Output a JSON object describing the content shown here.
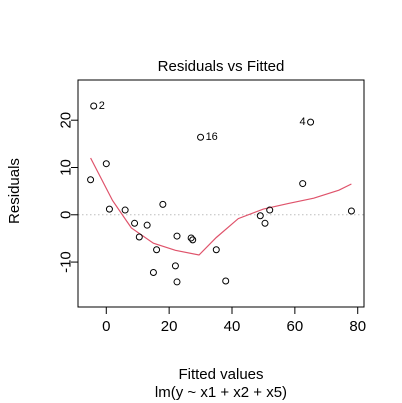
{
  "chart_data": {
    "type": "scatter",
    "title": "Residuals vs Fitted",
    "xlabel": "Fitted values",
    "subtitle": "lm(y ~ x1 + x2 + x5)",
    "ylabel": "Residuals",
    "xlim": [
      -9,
      82
    ],
    "ylim": [
      -19.5,
      28.5
    ],
    "xticks": [
      0,
      20,
      40,
      60,
      80
    ],
    "yticks": [
      -10,
      0,
      10,
      20
    ],
    "points": [
      {
        "x": -4,
        "y": 23.0,
        "label": "2"
      },
      {
        "x": -5,
        "y": 7.4
      },
      {
        "x": 0,
        "y": 10.8
      },
      {
        "x": 1,
        "y": 1.2
      },
      {
        "x": 6,
        "y": 1.0
      },
      {
        "x": 9,
        "y": -1.8
      },
      {
        "x": 10.5,
        "y": -4.7
      },
      {
        "x": 13,
        "y": -2.2
      },
      {
        "x": 15,
        "y": -12.2
      },
      {
        "x": 16,
        "y": -7.4
      },
      {
        "x": 18,
        "y": 2.2
      },
      {
        "x": 22,
        "y": -10.8
      },
      {
        "x": 22.5,
        "y": -4.5
      },
      {
        "x": 22.5,
        "y": -14.2
      },
      {
        "x": 27,
        "y": -4.9
      },
      {
        "x": 27.5,
        "y": -5.3
      },
      {
        "x": 30,
        "y": 16.4,
        "label": "16"
      },
      {
        "x": 35,
        "y": -7.4
      },
      {
        "x": 38,
        "y": -14.0
      },
      {
        "x": 49,
        "y": -0.2
      },
      {
        "x": 50.5,
        "y": -1.8
      },
      {
        "x": 52,
        "y": 1.0
      },
      {
        "x": 62.5,
        "y": 6.6
      },
      {
        "x": 65,
        "y": 19.6,
        "label": "4"
      },
      {
        "x": 78,
        "y": 0.8
      }
    ],
    "smooth_line": {
      "color": "#DF536B",
      "x": [
        -5,
        2,
        8,
        15,
        22,
        29.5,
        35,
        42,
        50,
        58,
        66,
        74,
        78
      ],
      "y": [
        12,
        3.0,
        -2.8,
        -6.0,
        -7.5,
        -8.5,
        -4.8,
        -0.8,
        1.2,
        2.4,
        3.5,
        5.2,
        6.5
      ]
    },
    "reference_line": {
      "y": 0,
      "color": "#BEBEBE",
      "style": "dotted"
    },
    "grid": false,
    "legend": false
  }
}
